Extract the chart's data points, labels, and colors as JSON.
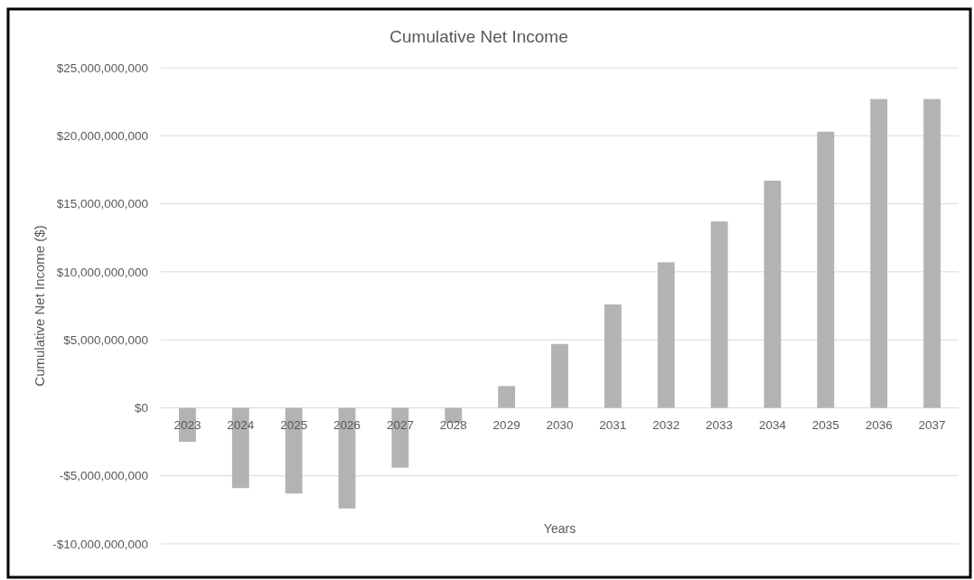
{
  "chart_data": {
    "type": "bar",
    "title": "Cumulative Net Income",
    "xlabel": "Years",
    "ylabel": "Cumulative Net Income ($)",
    "categories": [
      "2023",
      "2024",
      "2025",
      "2026",
      "2027",
      "2028",
      "2029",
      "2030",
      "2031",
      "2032",
      "2033",
      "2034",
      "2035",
      "2036",
      "2037"
    ],
    "values": [
      -2500000000,
      -5900000000,
      -6300000000,
      -7400000000,
      -4400000000,
      -1100000000,
      1600000000,
      4700000000,
      7600000000,
      10700000000,
      13700000000,
      16700000000,
      20300000000,
      22700000000,
      22700000000
    ],
    "color": "#b3b3b3",
    "ylim": [
      -10000000000,
      25000000000
    ],
    "yticks": [
      {
        "value": -10000000000,
        "label": "-$10,000,000,000"
      },
      {
        "value": -5000000000,
        "label": "-$5,000,000,000"
      },
      {
        "value": 0,
        "label": "$0"
      },
      {
        "value": 5000000000,
        "label": "$5,000,000,000"
      },
      {
        "value": 10000000000,
        "label": "$10,000,000,000"
      },
      {
        "value": 15000000000,
        "label": "$15,000,000,000"
      },
      {
        "value": 20000000000,
        "label": "$20,000,000,000"
      },
      {
        "value": 25000000000,
        "label": "$25,000,000,000"
      }
    ],
    "grid": "y"
  }
}
